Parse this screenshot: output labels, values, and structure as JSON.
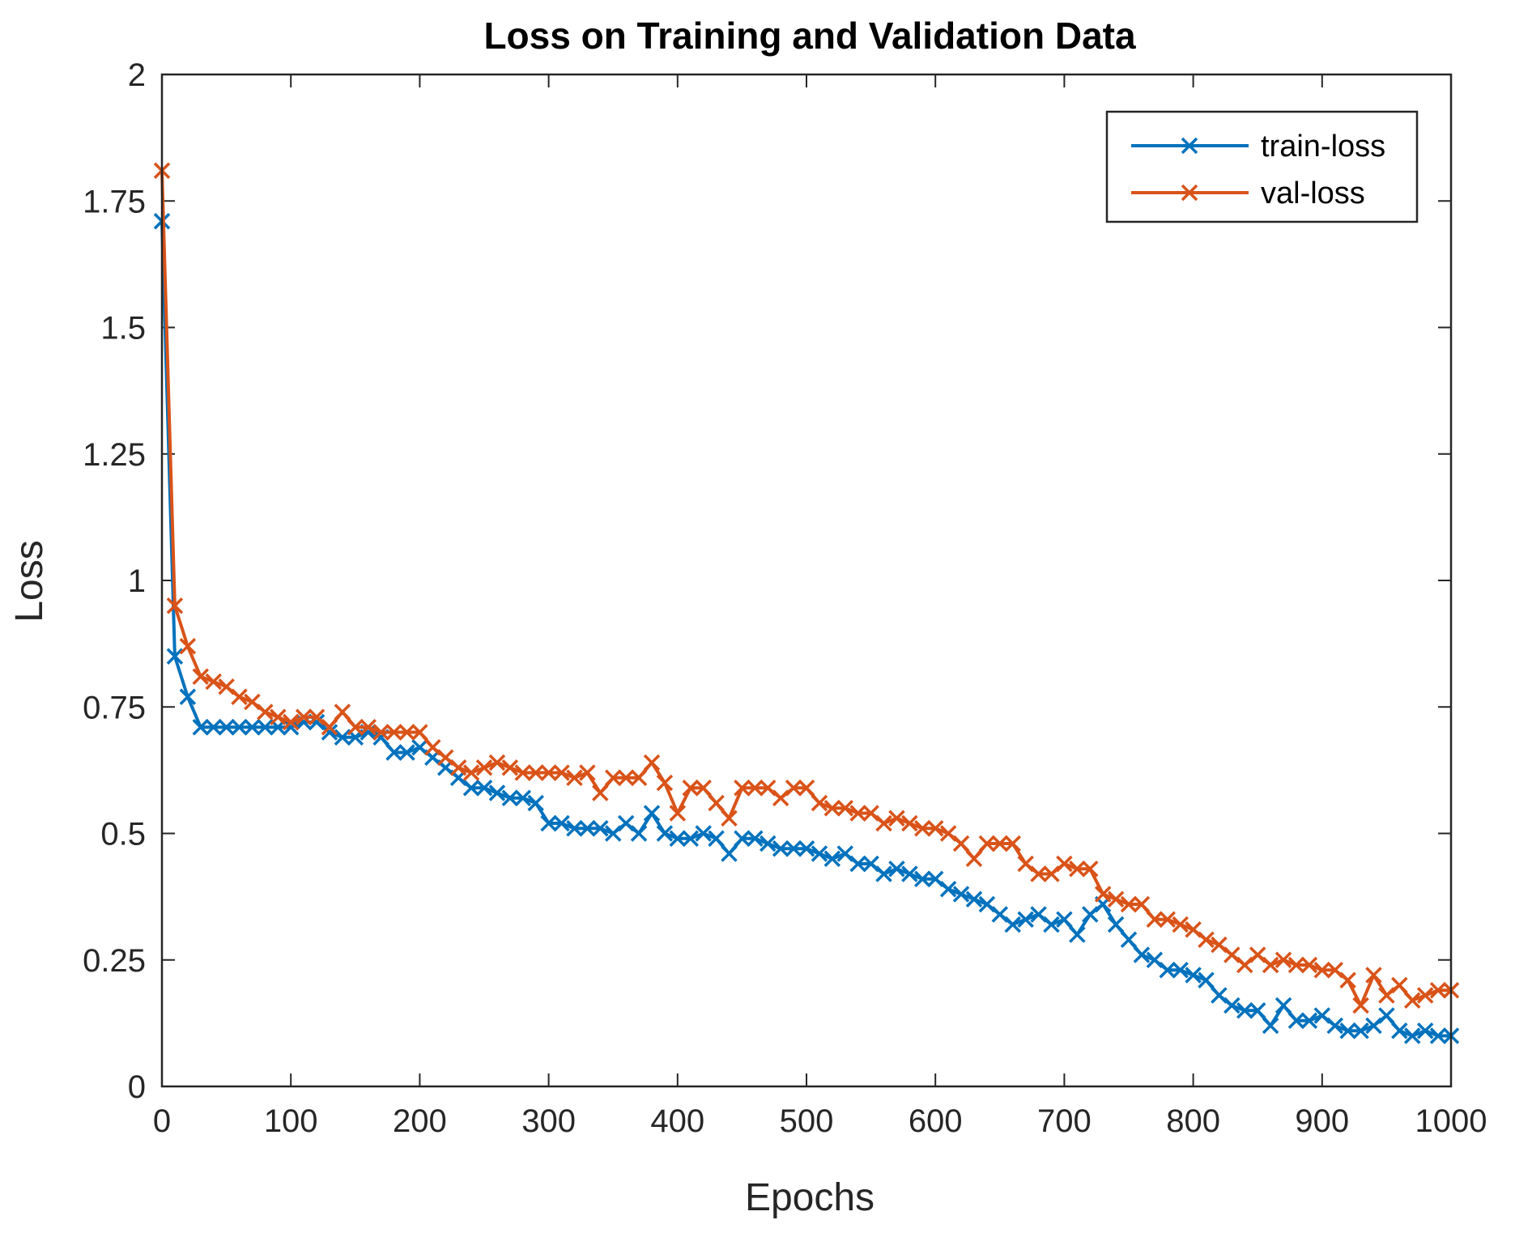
{
  "chart_data": {
    "type": "line",
    "title": "Loss on Training and Validation Data",
    "xlabel": "Epochs",
    "ylabel": "Loss",
    "xlim": [
      0,
      1000
    ],
    "ylim": [
      0,
      2
    ],
    "xticks": [
      0,
      100,
      200,
      300,
      400,
      500,
      600,
      700,
      800,
      900,
      1000
    ],
    "xtick_labels": [
      "0",
      "100",
      "200",
      "300",
      "400",
      "500",
      "600",
      "700",
      "800",
      "900",
      "1000"
    ],
    "yticks": [
      0,
      0.25,
      0.5,
      0.75,
      1,
      1.25,
      1.5,
      1.75,
      2
    ],
    "ytick_labels": [
      "0",
      "0.25",
      "0.5",
      "0.75",
      "1",
      "1.25",
      "1.5",
      "1.75",
      "2"
    ],
    "grid": false,
    "legend_position": "top-right",
    "marker": "x",
    "series": [
      {
        "name": "train-loss",
        "color": "#0072BD",
        "x": [
          0,
          10,
          20,
          30,
          40,
          50,
          60,
          70,
          80,
          90,
          100,
          110,
          120,
          130,
          140,
          150,
          160,
          170,
          180,
          190,
          200,
          210,
          220,
          230,
          240,
          250,
          260,
          270,
          280,
          290,
          300,
          310,
          320,
          330,
          340,
          350,
          360,
          370,
          380,
          390,
          400,
          410,
          420,
          430,
          440,
          450,
          460,
          470,
          480,
          490,
          500,
          510,
          520,
          530,
          540,
          550,
          560,
          570,
          580,
          590,
          600,
          610,
          620,
          630,
          640,
          650,
          660,
          670,
          680,
          690,
          700,
          710,
          720,
          730,
          740,
          750,
          760,
          770,
          780,
          790,
          800,
          810,
          820,
          830,
          840,
          850,
          860,
          870,
          880,
          890,
          900,
          910,
          920,
          930,
          940,
          950,
          960,
          970,
          980,
          990,
          1000
        ],
        "values": [
          1.71,
          0.85,
          0.77,
          0.71,
          0.71,
          0.71,
          0.71,
          0.71,
          0.71,
          0.71,
          0.71,
          0.72,
          0.72,
          0.7,
          0.69,
          0.69,
          0.7,
          0.69,
          0.66,
          0.66,
          0.67,
          0.65,
          0.63,
          0.61,
          0.59,
          0.59,
          0.58,
          0.57,
          0.57,
          0.56,
          0.52,
          0.52,
          0.51,
          0.51,
          0.51,
          0.5,
          0.52,
          0.5,
          0.54,
          0.5,
          0.49,
          0.49,
          0.5,
          0.49,
          0.46,
          0.49,
          0.49,
          0.48,
          0.47,
          0.47,
          0.47,
          0.46,
          0.45,
          0.46,
          0.44,
          0.44,
          0.42,
          0.43,
          0.42,
          0.41,
          0.41,
          0.39,
          0.38,
          0.37,
          0.36,
          0.34,
          0.32,
          0.33,
          0.34,
          0.32,
          0.33,
          0.3,
          0.34,
          0.36,
          0.32,
          0.29,
          0.26,
          0.25,
          0.23,
          0.23,
          0.22,
          0.21,
          0.18,
          0.16,
          0.15,
          0.15,
          0.12,
          0.16,
          0.13,
          0.13,
          0.14,
          0.12,
          0.11,
          0.11,
          0.12,
          0.14,
          0.11,
          0.1,
          0.11,
          0.1,
          0.1
        ]
      },
      {
        "name": "val-loss",
        "color": "#D95319",
        "x": [
          0,
          10,
          20,
          30,
          40,
          50,
          60,
          70,
          80,
          90,
          100,
          110,
          120,
          130,
          140,
          150,
          160,
          170,
          180,
          190,
          200,
          210,
          220,
          230,
          240,
          250,
          260,
          270,
          280,
          290,
          300,
          310,
          320,
          330,
          340,
          350,
          360,
          370,
          380,
          390,
          400,
          410,
          420,
          430,
          440,
          450,
          460,
          470,
          480,
          490,
          500,
          510,
          520,
          530,
          540,
          550,
          560,
          570,
          580,
          590,
          600,
          610,
          620,
          630,
          640,
          650,
          660,
          670,
          680,
          690,
          700,
          710,
          720,
          730,
          740,
          750,
          760,
          770,
          780,
          790,
          800,
          810,
          820,
          830,
          840,
          850,
          860,
          870,
          880,
          890,
          900,
          910,
          920,
          930,
          940,
          950,
          960,
          970,
          980,
          990,
          1000
        ],
        "values": [
          1.81,
          0.95,
          0.87,
          0.81,
          0.8,
          0.79,
          0.77,
          0.76,
          0.74,
          0.73,
          0.72,
          0.73,
          0.73,
          0.71,
          0.74,
          0.71,
          0.71,
          0.7,
          0.7,
          0.7,
          0.7,
          0.67,
          0.65,
          0.63,
          0.62,
          0.63,
          0.64,
          0.63,
          0.62,
          0.62,
          0.62,
          0.62,
          0.61,
          0.62,
          0.58,
          0.61,
          0.61,
          0.61,
          0.64,
          0.6,
          0.54,
          0.59,
          0.59,
          0.56,
          0.53,
          0.59,
          0.59,
          0.59,
          0.57,
          0.59,
          0.59,
          0.56,
          0.55,
          0.55,
          0.54,
          0.54,
          0.52,
          0.53,
          0.52,
          0.51,
          0.51,
          0.5,
          0.48,
          0.45,
          0.48,
          0.48,
          0.48,
          0.44,
          0.42,
          0.42,
          0.44,
          0.43,
          0.43,
          0.38,
          0.37,
          0.36,
          0.36,
          0.33,
          0.33,
          0.32,
          0.31,
          0.29,
          0.28,
          0.26,
          0.24,
          0.26,
          0.24,
          0.25,
          0.24,
          0.24,
          0.23,
          0.23,
          0.21,
          0.16,
          0.22,
          0.18,
          0.2,
          0.17,
          0.18,
          0.19,
          0.19
        ]
      }
    ]
  }
}
